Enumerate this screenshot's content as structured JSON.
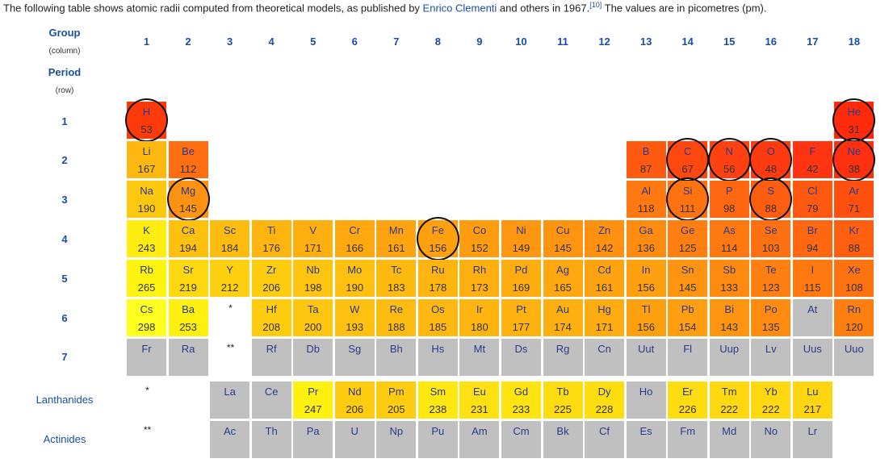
{
  "intro": {
    "pre": "The following table shows atomic radii computed from theoretical models, as published by ",
    "link": "Enrico Clementi",
    "mid": " and others in 1967.",
    "ref": "[10]",
    "post": " The values are in picometres (pm)."
  },
  "labels": {
    "group": "Group",
    "group_sub": "(column)",
    "period": "Period",
    "period_sub": "(row)",
    "lanthanides": "Lanthanides",
    "actinides": "Actinides",
    "star": "*",
    "dstar": "**"
  },
  "groups": [
    "1",
    "2",
    "3",
    "4",
    "5",
    "6",
    "7",
    "8",
    "9",
    "10",
    "11",
    "12",
    "13",
    "14",
    "15",
    "16",
    "17",
    "18"
  ],
  "periods": [
    "1",
    "2",
    "3",
    "4",
    "5",
    "6",
    "7"
  ],
  "elements": [
    {
      "s": "H",
      "v": "53",
      "p": 1,
      "g": 1,
      "c": "#ff3a0a",
      "circle": true
    },
    {
      "s": "He",
      "v": "31",
      "p": 1,
      "g": 18,
      "c": "#ff2a0a",
      "circle": true
    },
    {
      "s": "Li",
      "v": "167",
      "p": 2,
      "g": 1,
      "c": "#ffb810"
    },
    {
      "s": "Be",
      "v": "112",
      "p": 2,
      "g": 2,
      "c": "#ff6e10"
    },
    {
      "s": "B",
      "v": "87",
      "p": 2,
      "g": 13,
      "c": "#ff5a10"
    },
    {
      "s": "C",
      "v": "67",
      "p": 2,
      "g": 14,
      "c": "#ff4810",
      "circle": true
    },
    {
      "s": "N",
      "v": "56",
      "p": 2,
      "g": 15,
      "c": "#ff4010",
      "circle": true
    },
    {
      "s": "O",
      "v": "48",
      "p": 2,
      "g": 16,
      "c": "#ff3a10",
      "circle": true
    },
    {
      "s": "F",
      "v": "42",
      "p": 2,
      "g": 17,
      "c": "#ff3410"
    },
    {
      "s": "Ne",
      "v": "38",
      "p": 2,
      "g": 18,
      "c": "#ff3010",
      "circle": true
    },
    {
      "s": "Na",
      "v": "190",
      "p": 3,
      "g": 1,
      "c": "#ffc810"
    },
    {
      "s": "Mg",
      "v": "145",
      "p": 3,
      "g": 2,
      "c": "#ff9210",
      "circle": true
    },
    {
      "s": "Al",
      "v": "118",
      "p": 3,
      "g": 13,
      "c": "#ff7810"
    },
    {
      "s": "Si",
      "v": "111",
      "p": 3,
      "g": 14,
      "c": "#ff7210",
      "circle": true
    },
    {
      "s": "P",
      "v": "98",
      "p": 3,
      "g": 15,
      "c": "#ff6810"
    },
    {
      "s": "S",
      "v": "88",
      "p": 3,
      "g": 16,
      "c": "#ff5e10",
      "circle": true
    },
    {
      "s": "Cl",
      "v": "79",
      "p": 3,
      "g": 17,
      "c": "#ff5810"
    },
    {
      "s": "Ar",
      "v": "71",
      "p": 3,
      "g": 18,
      "c": "#ff5010"
    },
    {
      "s": "K",
      "v": "243",
      "p": 4,
      "g": 1,
      "c": "#ffec10"
    },
    {
      "s": "Ca",
      "v": "194",
      "p": 4,
      "g": 2,
      "c": "#ffc010"
    },
    {
      "s": "Sc",
      "v": "184",
      "p": 4,
      "g": 3,
      "c": "#ffbc10"
    },
    {
      "s": "Ti",
      "v": "176",
      "p": 4,
      "g": 4,
      "c": "#ffb410"
    },
    {
      "s": "V",
      "v": "171",
      "p": 4,
      "g": 5,
      "c": "#ffb010"
    },
    {
      "s": "Cr",
      "v": "166",
      "p": 4,
      "g": 6,
      "c": "#ffa810"
    },
    {
      "s": "Mn",
      "v": "161",
      "p": 4,
      "g": 7,
      "c": "#ffa410"
    },
    {
      "s": "Fe",
      "v": "156",
      "p": 4,
      "g": 8,
      "c": "#ffa010",
      "circle": true
    },
    {
      "s": "Co",
      "v": "152",
      "p": 4,
      "g": 9,
      "c": "#ff9c10"
    },
    {
      "s": "Ni",
      "v": "149",
      "p": 4,
      "g": 10,
      "c": "#ff9810"
    },
    {
      "s": "Cu",
      "v": "145",
      "p": 4,
      "g": 11,
      "c": "#ff9410"
    },
    {
      "s": "Zn",
      "v": "142",
      "p": 4,
      "g": 12,
      "c": "#ff9010"
    },
    {
      "s": "Ga",
      "v": "136",
      "p": 4,
      "g": 13,
      "c": "#ff8c10"
    },
    {
      "s": "Ge",
      "v": "125",
      "p": 4,
      "g": 14,
      "c": "#ff8010"
    },
    {
      "s": "As",
      "v": "114",
      "p": 4,
      "g": 15,
      "c": "#ff7810"
    },
    {
      "s": "Se",
      "v": "103",
      "p": 4,
      "g": 16,
      "c": "#ff7010"
    },
    {
      "s": "Br",
      "v": "94",
      "p": 4,
      "g": 17,
      "c": "#ff6810"
    },
    {
      "s": "Kr",
      "v": "88",
      "p": 4,
      "g": 18,
      "c": "#ff6010"
    },
    {
      "s": "Rb",
      "v": "265",
      "p": 5,
      "g": 1,
      "c": "#fff410"
    },
    {
      "s": "Sr",
      "v": "219",
      "p": 5,
      "g": 2,
      "c": "#ffd810"
    },
    {
      "s": "Y",
      "v": "212",
      "p": 5,
      "g": 3,
      "c": "#ffd010"
    },
    {
      "s": "Zr",
      "v": "206",
      "p": 5,
      "g": 4,
      "c": "#ffcc10"
    },
    {
      "s": "Nb",
      "v": "198",
      "p": 5,
      "g": 5,
      "c": "#ffc410"
    },
    {
      "s": "Mo",
      "v": "190",
      "p": 5,
      "g": 6,
      "c": "#ffc010"
    },
    {
      "s": "Tc",
      "v": "183",
      "p": 5,
      "g": 7,
      "c": "#ffba10"
    },
    {
      "s": "Ru",
      "v": "178",
      "p": 5,
      "g": 8,
      "c": "#ffb410"
    },
    {
      "s": "Rh",
      "v": "173",
      "p": 5,
      "g": 9,
      "c": "#ffb010"
    },
    {
      "s": "Pd",
      "v": "169",
      "p": 5,
      "g": 10,
      "c": "#ffac10"
    },
    {
      "s": "Ag",
      "v": "165",
      "p": 5,
      "g": 11,
      "c": "#ffa810"
    },
    {
      "s": "Cd",
      "v": "161",
      "p": 5,
      "g": 12,
      "c": "#ffa410"
    },
    {
      "s": "In",
      "v": "156",
      "p": 5,
      "g": 13,
      "c": "#ffa010"
    },
    {
      "s": "Sn",
      "v": "145",
      "p": 5,
      "g": 14,
      "c": "#ff9410"
    },
    {
      "s": "Sb",
      "v": "133",
      "p": 5,
      "g": 15,
      "c": "#ff8a10"
    },
    {
      "s": "Te",
      "v": "123",
      "p": 5,
      "g": 16,
      "c": "#ff8010"
    },
    {
      "s": "I",
      "v": "115",
      "p": 5,
      "g": 17,
      "c": "#ff7810"
    },
    {
      "s": "Xe",
      "v": "108",
      "p": 5,
      "g": 18,
      "c": "#ff7210"
    },
    {
      "s": "Cs",
      "v": "298",
      "p": 6,
      "g": 1,
      "c": "#ffff20"
    },
    {
      "s": "Ba",
      "v": "253",
      "p": 6,
      "g": 2,
      "c": "#fff010"
    },
    {
      "s": "Hf",
      "v": "208",
      "p": 6,
      "g": 4,
      "c": "#ffcc10"
    },
    {
      "s": "Ta",
      "v": "200",
      "p": 6,
      "g": 5,
      "c": "#ffc610"
    },
    {
      "s": "W",
      "v": "193",
      "p": 6,
      "g": 6,
      "c": "#ffc010"
    },
    {
      "s": "Re",
      "v": "188",
      "p": 6,
      "g": 7,
      "c": "#ffbc10"
    },
    {
      "s": "Os",
      "v": "185",
      "p": 6,
      "g": 8,
      "c": "#ffb810"
    },
    {
      "s": "Ir",
      "v": "180",
      "p": 6,
      "g": 9,
      "c": "#ffb410"
    },
    {
      "s": "Pt",
      "v": "177",
      "p": 6,
      "g": 10,
      "c": "#ffb210"
    },
    {
      "s": "Au",
      "v": "174",
      "p": 6,
      "g": 11,
      "c": "#ffb010"
    },
    {
      "s": "Hg",
      "v": "171",
      "p": 6,
      "g": 12,
      "c": "#ffac10"
    },
    {
      "s": "Tl",
      "v": "156",
      "p": 6,
      "g": 13,
      "c": "#ffa010"
    },
    {
      "s": "Pb",
      "v": "154",
      "p": 6,
      "g": 14,
      "c": "#ff9e10"
    },
    {
      "s": "Bi",
      "v": "143",
      "p": 6,
      "g": 15,
      "c": "#ff9410"
    },
    {
      "s": "Po",
      "v": "135",
      "p": 6,
      "g": 16,
      "c": "#ff8c10"
    },
    {
      "s": "At",
      "v": "",
      "p": 6,
      "g": 17,
      "c": "#c0c0c0"
    },
    {
      "s": "Rn",
      "v": "120",
      "p": 6,
      "g": 18,
      "c": "#ff7e10"
    },
    {
      "s": "Fr",
      "v": "",
      "p": 7,
      "g": 1,
      "c": "#c0c0c0"
    },
    {
      "s": "Ra",
      "v": "",
      "p": 7,
      "g": 2,
      "c": "#c0c0c0"
    },
    {
      "s": "Rf",
      "v": "",
      "p": 7,
      "g": 4,
      "c": "#c0c0c0"
    },
    {
      "s": "Db",
      "v": "",
      "p": 7,
      "g": 5,
      "c": "#c0c0c0"
    },
    {
      "s": "Sg",
      "v": "",
      "p": 7,
      "g": 6,
      "c": "#c0c0c0"
    },
    {
      "s": "Bh",
      "v": "",
      "p": 7,
      "g": 7,
      "c": "#c0c0c0"
    },
    {
      "s": "Hs",
      "v": "",
      "p": 7,
      "g": 8,
      "c": "#c0c0c0"
    },
    {
      "s": "Mt",
      "v": "",
      "p": 7,
      "g": 9,
      "c": "#c0c0c0"
    },
    {
      "s": "Ds",
      "v": "",
      "p": 7,
      "g": 10,
      "c": "#c0c0c0"
    },
    {
      "s": "Rg",
      "v": "",
      "p": 7,
      "g": 11,
      "c": "#c0c0c0"
    },
    {
      "s": "Cn",
      "v": "",
      "p": 7,
      "g": 12,
      "c": "#c0c0c0"
    },
    {
      "s": "Uut",
      "v": "",
      "p": 7,
      "g": 13,
      "c": "#c0c0c0"
    },
    {
      "s": "Fl",
      "v": "",
      "p": 7,
      "g": 14,
      "c": "#c0c0c0"
    },
    {
      "s": "Uup",
      "v": "",
      "p": 7,
      "g": 15,
      "c": "#c0c0c0"
    },
    {
      "s": "Lv",
      "v": "",
      "p": 7,
      "g": 16,
      "c": "#c0c0c0"
    },
    {
      "s": "Uus",
      "v": "",
      "p": 7,
      "g": 17,
      "c": "#c0c0c0"
    },
    {
      "s": "Uuo",
      "v": "",
      "p": 7,
      "g": 18,
      "c": "#c0c0c0"
    },
    {
      "s": "La",
      "v": "",
      "p": 8,
      "g": 3,
      "c": "#c0c0c0"
    },
    {
      "s": "Ce",
      "v": "",
      "p": 8,
      "g": 4,
      "c": "#c0c0c0"
    },
    {
      "s": "Pr",
      "v": "247",
      "p": 8,
      "g": 5,
      "c": "#fff010"
    },
    {
      "s": "Nd",
      "v": "206",
      "p": 8,
      "g": 6,
      "c": "#ffcc10"
    },
    {
      "s": "Pm",
      "v": "205",
      "p": 8,
      "g": 7,
      "c": "#ffcc10"
    },
    {
      "s": "Sm",
      "v": "238",
      "p": 8,
      "g": 8,
      "c": "#ffe810"
    },
    {
      "s": "Eu",
      "v": "231",
      "p": 8,
      "g": 9,
      "c": "#ffe010"
    },
    {
      "s": "Gd",
      "v": "233",
      "p": 8,
      "g": 10,
      "c": "#ffe410"
    },
    {
      "s": "Tb",
      "v": "225",
      "p": 8,
      "g": 11,
      "c": "#ffdc10"
    },
    {
      "s": "Dy",
      "v": "228",
      "p": 8,
      "g": 12,
      "c": "#ffde10"
    },
    {
      "s": "Ho",
      "v": "",
      "p": 8,
      "g": 13,
      "c": "#c0c0c0"
    },
    {
      "s": "Er",
      "v": "226",
      "p": 8,
      "g": 14,
      "c": "#ffdc10"
    },
    {
      "s": "Tm",
      "v": "222",
      "p": 8,
      "g": 15,
      "c": "#ffd810"
    },
    {
      "s": "Yb",
      "v": "222",
      "p": 8,
      "g": 16,
      "c": "#ffd810"
    },
    {
      "s": "Lu",
      "v": "217",
      "p": 8,
      "g": 17,
      "c": "#ffd410"
    },
    {
      "s": "Ac",
      "v": "",
      "p": 9,
      "g": 3,
      "c": "#c0c0c0"
    },
    {
      "s": "Th",
      "v": "",
      "p": 9,
      "g": 4,
      "c": "#c0c0c0"
    },
    {
      "s": "Pa",
      "v": "",
      "p": 9,
      "g": 5,
      "c": "#c0c0c0"
    },
    {
      "s": "U",
      "v": "",
      "p": 9,
      "g": 6,
      "c": "#c0c0c0"
    },
    {
      "s": "Np",
      "v": "",
      "p": 9,
      "g": 7,
      "c": "#c0c0c0"
    },
    {
      "s": "Pu",
      "v": "",
      "p": 9,
      "g": 8,
      "c": "#c0c0c0"
    },
    {
      "s": "Am",
      "v": "",
      "p": 9,
      "g": 9,
      "c": "#c0c0c0"
    },
    {
      "s": "Cm",
      "v": "",
      "p": 9,
      "g": 10,
      "c": "#c0c0c0"
    },
    {
      "s": "Bk",
      "v": "",
      "p": 9,
      "g": 11,
      "c": "#c0c0c0"
    },
    {
      "s": "Cf",
      "v": "",
      "p": 9,
      "g": 12,
      "c": "#c0c0c0"
    },
    {
      "s": "Es",
      "v": "",
      "p": 9,
      "g": 13,
      "c": "#c0c0c0"
    },
    {
      "s": "Fm",
      "v": "",
      "p": 9,
      "g": 14,
      "c": "#c0c0c0"
    },
    {
      "s": "Md",
      "v": "",
      "p": 9,
      "g": 15,
      "c": "#c0c0c0"
    },
    {
      "s": "No",
      "v": "",
      "p": 9,
      "g": 16,
      "c": "#c0c0c0"
    },
    {
      "s": "Lr",
      "v": "",
      "p": 9,
      "g": 17,
      "c": "#c0c0c0"
    }
  ]
}
